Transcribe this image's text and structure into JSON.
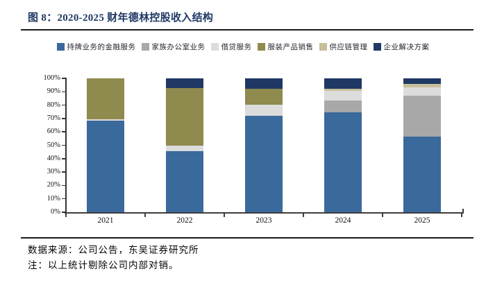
{
  "title": "图 8：2020-2025 财年德林控股收入结构",
  "footer": {
    "source": "数据来源：公司公告，东吴证券研究所",
    "note": "注：以上统计剔除公司内部对销。"
  },
  "colors": {
    "title_text": "#1f3864",
    "rule": "#1a1a1a",
    "axis": "#333333",
    "licensed_financial": "#3a699c",
    "family_office": "#a8a8a8",
    "lending": "#dcdcdc",
    "apparel": "#8f8a4e",
    "supply_chain": "#c6bf9a",
    "enterprise_solutions": "#1f3864"
  },
  "chart_data": {
    "type": "bar",
    "stacked": true,
    "title": "2020-2025 财年德林控股收入结构",
    "categories": [
      "2021",
      "2022",
      "2023",
      "2024",
      "2025"
    ],
    "series": [
      {
        "name": "持牌业务的金融服务",
        "color": "#3a699c",
        "values": [
          68.5,
          45.5,
          72,
          74.5,
          56.5
        ]
      },
      {
        "name": "家族办公室业务",
        "color": "#a8a8a8",
        "values": [
          0,
          0,
          0,
          9,
          30.5
        ]
      },
      {
        "name": "借贷服务",
        "color": "#dcdcdc",
        "values": [
          1,
          4,
          8.5,
          7,
          6.5
        ]
      },
      {
        "name": "服装产品销售",
        "color": "#8f8a4e",
        "values": [
          30.5,
          43,
          12,
          0,
          0
        ]
      },
      {
        "name": "供应链管理",
        "color": "#c6bf9a",
        "values": [
          0,
          0,
          0,
          1.5,
          2.5
        ]
      },
      {
        "name": "企业解决方案",
        "color": "#1f3864",
        "values": [
          0,
          7.5,
          7.5,
          8,
          4
        ]
      }
    ],
    "xlabel": "",
    "ylabel": "",
    "ylim": [
      0,
      100
    ],
    "ytick_step": 10,
    "ytick_labels": [
      "0%",
      "10%",
      "20%",
      "30%",
      "40%",
      "50%",
      "60%",
      "70%",
      "80%",
      "90%",
      "100%"
    ],
    "grid": false,
    "legend_position": "top"
  }
}
